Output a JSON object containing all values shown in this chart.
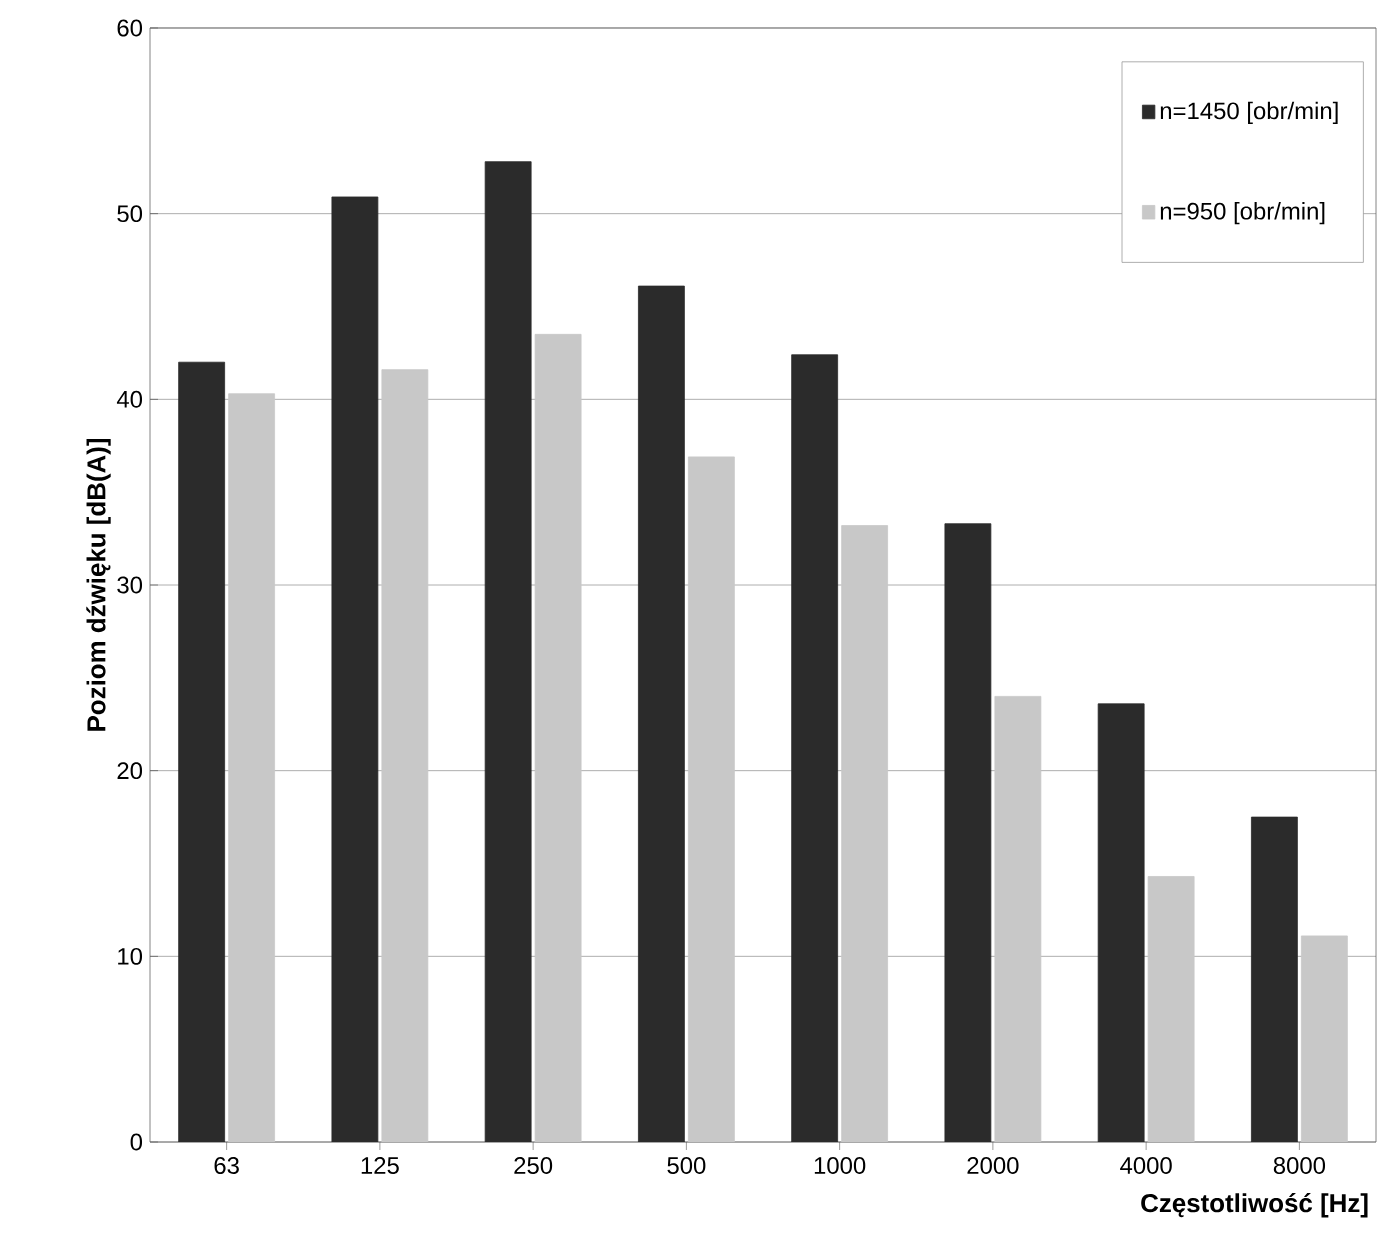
{
  "chart_data": {
    "type": "bar",
    "xlabel": "Częstotliwość [Hz]",
    "ylabel": "Poziom dźwięku [dB(A)]",
    "categories": [
      "63",
      "125",
      "250",
      "500",
      "1000",
      "2000",
      "4000",
      "8000"
    ],
    "series": [
      {
        "name": "n=1450 [obr/min]",
        "color": "#2b2b2b",
        "values": [
          42,
          50.9,
          52.8,
          46.1,
          42.4,
          33.3,
          23.6,
          17.5
        ]
      },
      {
        "name": "n=950 [obr/min]",
        "color": "#c8c8c8",
        "values": [
          40.3,
          41.6,
          43.5,
          36.9,
          33.2,
          24,
          14.3,
          11.1
        ]
      }
    ],
    "ylim": [
      0,
      60
    ],
    "yticks": [
      0,
      10,
      20,
      30,
      40,
      50,
      60
    ],
    "grid": "y",
    "legend": "top right"
  }
}
